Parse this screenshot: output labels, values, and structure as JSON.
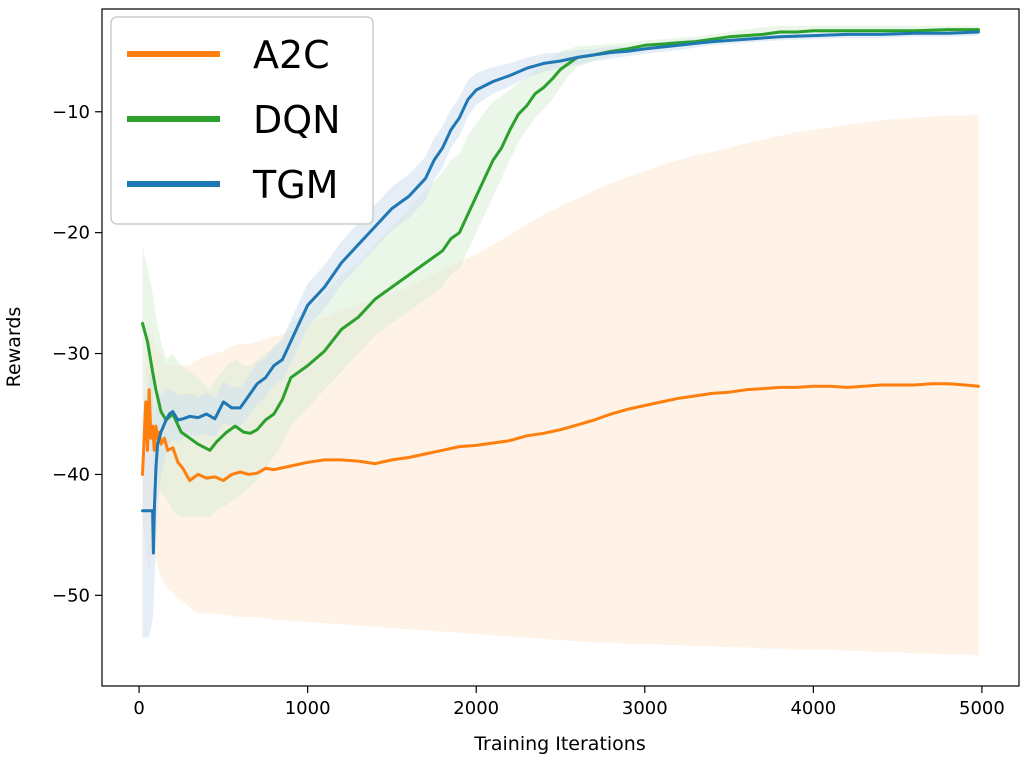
{
  "chart_data": {
    "type": "line",
    "title": "",
    "xlabel": "Training Iterations",
    "ylabel": "Rewards",
    "xlim": [
      -220,
      5220
    ],
    "ylim": [
      -57.5,
      -1.5
    ],
    "xticks": [
      0,
      1000,
      2000,
      3000,
      4000,
      5000
    ],
    "xtick_labels": [
      "0",
      "1000",
      "2000",
      "3000",
      "4000",
      "5000"
    ],
    "yticks": [
      -10,
      -20,
      -30,
      -40,
      -50
    ],
    "ytick_labels": [
      "−10",
      "−20",
      "−30",
      "−40",
      "−50"
    ],
    "grid": false,
    "legend_position": "top-left",
    "series": [
      {
        "name": "A2C",
        "color": "#ff7f0e",
        "band_color": "#ffe7d1",
        "x": [
          20,
          40,
          50,
          60,
          70,
          80,
          90,
          100,
          110,
          120,
          130,
          150,
          170,
          200,
          230,
          260,
          300,
          350,
          400,
          450,
          500,
          550,
          600,
          650,
          700,
          750,
          800,
          900,
          1000,
          1100,
          1200,
          1300,
          1400,
          1500,
          1600,
          1700,
          1800,
          1900,
          2000,
          2100,
          2200,
          2300,
          2400,
          2500,
          2600,
          2700,
          2800,
          2900,
          3000,
          3100,
          3200,
          3300,
          3400,
          3500,
          3600,
          3700,
          3800,
          3900,
          4000,
          4100,
          4200,
          4300,
          4400,
          4500,
          4600,
          4700,
          4800,
          4900,
          4980
        ],
        "mean": [
          -40,
          -34,
          -38,
          -33,
          -37,
          -36,
          -38,
          -36,
          -37,
          -36.5,
          -37.5,
          -37,
          -38,
          -37.8,
          -39,
          -39.5,
          -40.5,
          -40,
          -40.3,
          -40.2,
          -40.5,
          -40,
          -39.8,
          -40,
          -39.9,
          -39.5,
          -39.6,
          -39.3,
          -39,
          -38.8,
          -38.8,
          -38.9,
          -39.1,
          -38.8,
          -38.6,
          -38.3,
          -38,
          -37.7,
          -37.6,
          -37.4,
          -37.2,
          -36.8,
          -36.6,
          -36.3,
          -35.9,
          -35.5,
          -35.0,
          -34.6,
          -34.3,
          -34.0,
          -33.7,
          -33.5,
          -33.3,
          -33.2,
          -33.0,
          -32.9,
          -32.8,
          -32.8,
          -32.7,
          -32.7,
          -32.8,
          -32.7,
          -32.6,
          -32.6,
          -32.6,
          -32.5,
          -32.5,
          -32.6,
          -32.7
        ],
        "lower": [
          -44,
          -46,
          -47,
          -48,
          -47,
          -46,
          -46.5,
          -47,
          -47.5,
          -48,
          -48.5,
          -49,
          -49.5,
          -49.8,
          -50.2,
          -50.5,
          -51,
          -51.5,
          -51.5,
          -51.5,
          -51.6,
          -51.7,
          -51.8,
          -51.8,
          -51.8,
          -51.9,
          -52,
          -52.1,
          -52.2,
          -52.3,
          -52.4,
          -52.5,
          -52.6,
          -52.7,
          -52.8,
          -52.9,
          -53,
          -53.1,
          -53.2,
          -53.3,
          -53.4,
          -53.5,
          -53.6,
          -53.7,
          -53.8,
          -53.9,
          -53.9,
          -54,
          -54,
          -54.1,
          -54.1,
          -54.2,
          -54.2,
          -54.3,
          -54.3,
          -54.4,
          -54.4,
          -54.5,
          -54.5,
          -54.5,
          -54.6,
          -54.6,
          -54.7,
          -54.7,
          -54.8,
          -54.8,
          -54.9,
          -54.9,
          -55
        ],
        "upper": [
          -36,
          -30,
          -30,
          -26,
          -29,
          -28,
          -30,
          -29,
          -30,
          -30,
          -30,
          -31,
          -31,
          -31,
          -31,
          -31,
          -31,
          -30.5,
          -30.2,
          -30,
          -29.8,
          -29.4,
          -29.2,
          -29.2,
          -29,
          -28.8,
          -28.6,
          -28.2,
          -27.5,
          -27,
          -26.4,
          -25.9,
          -25.5,
          -25,
          -24.5,
          -23.8,
          -23,
          -22.4,
          -21.8,
          -21,
          -20.2,
          -19.3,
          -18.5,
          -17.8,
          -17.2,
          -16.5,
          -15.9,
          -15.4,
          -14.9,
          -14.4,
          -14.0,
          -13.6,
          -13.3,
          -13.0,
          -12.6,
          -12.3,
          -12.0,
          -11.7,
          -11.5,
          -11.3,
          -11.1,
          -10.9,
          -10.7,
          -10.6,
          -10.5,
          -10.4,
          -10.3,
          -10.3,
          -10.2
        ]
      },
      {
        "name": "DQN",
        "color": "#2ca02c",
        "band_color": "#d8eed5",
        "x": [
          20,
          50,
          80,
          100,
          130,
          160,
          200,
          250,
          300,
          350,
          420,
          460,
          520,
          570,
          620,
          660,
          700,
          750,
          800,
          850,
          900,
          1000,
          1100,
          1200,
          1300,
          1400,
          1500,
          1600,
          1700,
          1800,
          1850,
          1900,
          1950,
          2000,
          2050,
          2100,
          2150,
          2200,
          2250,
          2300,
          2350,
          2400,
          2450,
          2500,
          2550,
          2600,
          2700,
          2800,
          2900,
          3000,
          3100,
          3200,
          3300,
          3400,
          3500,
          3600,
          3700,
          3800,
          3900,
          4000,
          4200,
          4400,
          4600,
          4800,
          4980
        ],
        "mean": [
          -27.5,
          -29,
          -31.5,
          -33,
          -34.8,
          -35.5,
          -35,
          -36.5,
          -37,
          -37.5,
          -38,
          -37.3,
          -36.5,
          -36,
          -36.5,
          -36.6,
          -36.3,
          -35.5,
          -35,
          -33.8,
          -32,
          -31,
          -29.8,
          -28,
          -27,
          -25.5,
          -24.5,
          -23.5,
          -22.5,
          -21.5,
          -20.5,
          -20,
          -18.5,
          -17,
          -15.5,
          -14,
          -13,
          -11.5,
          -10.2,
          -9.5,
          -8.5,
          -8,
          -7.3,
          -6.5,
          -6,
          -5.5,
          -5.3,
          -5,
          -4.8,
          -4.5,
          -4.4,
          -4.3,
          -4.2,
          -4.0,
          -3.8,
          -3.7,
          -3.6,
          -3.4,
          -3.4,
          -3.3,
          -3.3,
          -3.3,
          -3.3,
          -3.2,
          -3.2
        ],
        "lower": [
          -34,
          -36,
          -39,
          -40,
          -41.5,
          -42,
          -43,
          -43.5,
          -43.5,
          -43.5,
          -43.5,
          -43,
          -42.5,
          -42,
          -41.5,
          -41,
          -40.5,
          -39.5,
          -38.5,
          -37.5,
          -36,
          -34.5,
          -33,
          -31.5,
          -30,
          -28.5,
          -27.5,
          -26.5,
          -25.5,
          -24.5,
          -23.5,
          -23,
          -21.5,
          -20,
          -18.5,
          -17,
          -15.5,
          -14,
          -12.5,
          -11.5,
          -10.5,
          -9.8,
          -9,
          -8,
          -7,
          -6.3,
          -5.8,
          -5.4,
          -5,
          -4.8,
          -4.6,
          -4.5,
          -4.4,
          -4.2,
          -4.0,
          -3.9,
          -3.8,
          -3.6,
          -3.6,
          -3.5,
          -3.5,
          -3.5,
          -3.5,
          -3.4,
          -3.4
        ],
        "upper": [
          -21,
          -23,
          -25,
          -27,
          -29,
          -30.5,
          -30,
          -31,
          -31.5,
          -32,
          -33,
          -32,
          -31,
          -30.5,
          -31,
          -31,
          -30.5,
          -30,
          -29.5,
          -29,
          -27.5,
          -26.5,
          -25,
          -23.5,
          -22.5,
          -21,
          -19.5,
          -18,
          -16.5,
          -15,
          -14,
          -13.5,
          -12,
          -11,
          -10,
          -9.2,
          -8.7,
          -8.2,
          -7.6,
          -7.2,
          -6.5,
          -6,
          -5.5,
          -5,
          -4.8,
          -4.6,
          -4.5,
          -4.4,
          -4.3,
          -4.1,
          -4.0,
          -3.9,
          -3.8,
          -3.6,
          -3.4,
          -3.2,
          -3.0,
          -2.9,
          -2.9,
          -2.9,
          -2.9,
          -2.9,
          -2.9,
          -2.9,
          -2.9
        ]
      },
      {
        "name": "TGM",
        "color": "#1f77b4",
        "band_color": "#cfe0f0",
        "x": [
          20,
          60,
          80,
          85,
          90,
          100,
          110,
          130,
          160,
          180,
          200,
          230,
          260,
          300,
          350,
          400,
          450,
          500,
          550,
          600,
          650,
          700,
          750,
          800,
          850,
          900,
          950,
          1000,
          1100,
          1200,
          1300,
          1400,
          1500,
          1600,
          1700,
          1750,
          1800,
          1850,
          1900,
          1950,
          2000,
          2100,
          2200,
          2300,
          2400,
          2500,
          2600,
          2700,
          2800,
          2900,
          3000,
          3200,
          3400,
          3600,
          3800,
          4000,
          4200,
          4400,
          4600,
          4800,
          4980
        ],
        "mean": [
          -43,
          -43,
          -43,
          -46.5,
          -43,
          -39.5,
          -37.5,
          -36.5,
          -35.5,
          -35,
          -34.8,
          -35.5,
          -35.4,
          -35.2,
          -35.3,
          -35.0,
          -35.4,
          -34,
          -34.5,
          -34.5,
          -33.5,
          -32.5,
          -32,
          -31,
          -30.5,
          -29,
          -27.5,
          -26,
          -24.5,
          -22.5,
          -21,
          -19.5,
          -18,
          -17,
          -15.5,
          -14,
          -13,
          -11.5,
          -10.5,
          -9,
          -8.2,
          -7.5,
          -7.0,
          -6.4,
          -6.0,
          -5.8,
          -5.5,
          -5.3,
          -5.1,
          -5.0,
          -4.8,
          -4.5,
          -4.2,
          -4.0,
          -3.8,
          -3.7,
          -3.6,
          -3.6,
          -3.5,
          -3.5,
          -3.4
        ],
        "lower": [
          -53.5,
          -53.5,
          -52,
          -51,
          -49,
          -46,
          -43,
          -40,
          -38.5,
          -37.5,
          -37,
          -37.3,
          -37,
          -36.8,
          -36.8,
          -36.7,
          -36.9,
          -35.8,
          -36,
          -36,
          -35.2,
          -34.2,
          -33.6,
          -32.6,
          -32.2,
          -30.8,
          -29.3,
          -27.8,
          -26.3,
          -24.3,
          -22.8,
          -21.3,
          -19.8,
          -18.8,
          -17.3,
          -15.6,
          -14.6,
          -13,
          -12,
          -10.4,
          -9.4,
          -8.5,
          -7.9,
          -7.2,
          -6.7,
          -6.4,
          -6.1,
          -5.8,
          -5.6,
          -5.4,
          -5.2,
          -4.9,
          -4.5,
          -4.3,
          -4.1,
          -4.0,
          -3.9,
          -3.9,
          -3.8,
          -3.8,
          -3.7
        ],
        "upper": [
          -35,
          -32,
          -31,
          -34,
          -36,
          -34,
          -33,
          -33.5,
          -33,
          -33,
          -33,
          -33.5,
          -33.4,
          -33.3,
          -33.6,
          -33.2,
          -33.7,
          -32.3,
          -32.8,
          -32.8,
          -31.8,
          -30.8,
          -30.4,
          -29.4,
          -28.8,
          -27.2,
          -25.7,
          -24.2,
          -22.7,
          -20.7,
          -19.2,
          -17.7,
          -16.2,
          -15.2,
          -13.7,
          -12.2,
          -11.2,
          -9.8,
          -8.8,
          -7.4,
          -6.8,
          -6.3,
          -6.0,
          -5.5,
          -5.2,
          -5.1,
          -4.9,
          -4.8,
          -4.6,
          -4.6,
          -4.4,
          -4.1,
          -3.9,
          -3.7,
          -3.5,
          -3.4,
          -3.3,
          -3.3,
          -3.2,
          -3.2,
          -3.1
        ]
      }
    ]
  }
}
